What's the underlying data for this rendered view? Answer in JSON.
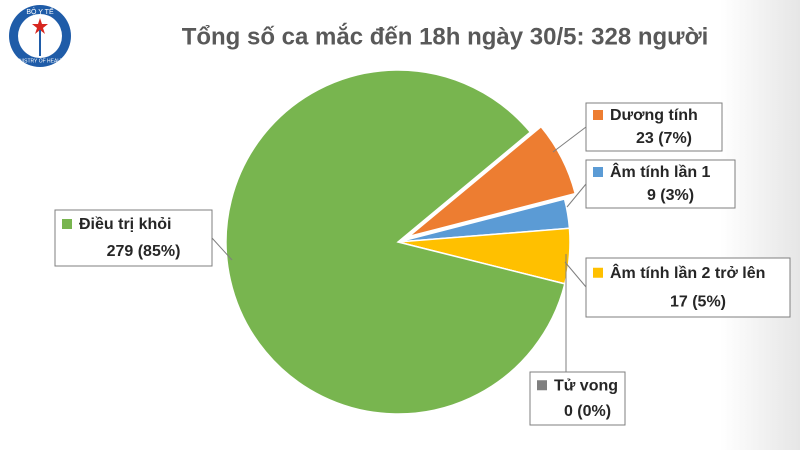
{
  "logo": {
    "top": "BỘ Y TẾ",
    "bottom": "MINISTRY OF HEALTH"
  },
  "chart_data": {
    "type": "pie",
    "title": "Tổng số ca mắc đến 18h ngày 30/5: 328 người",
    "categories": [
      "Dương tính",
      "Âm tính lần 1",
      "Âm tính lần 2 trở lên",
      "Tử vong",
      "Điều trị khỏi"
    ],
    "values": [
      23,
      9,
      17,
      0,
      279
    ],
    "value_labels": [
      "23 (7%)",
      "9 (3%)",
      "17 (5%)",
      "0 (0%)",
      "279 (85%)"
    ],
    "colors": [
      "#ed7d31",
      "#5b9bd5",
      "#ffc000",
      "#7f7f7f",
      "#78b54f"
    ]
  }
}
